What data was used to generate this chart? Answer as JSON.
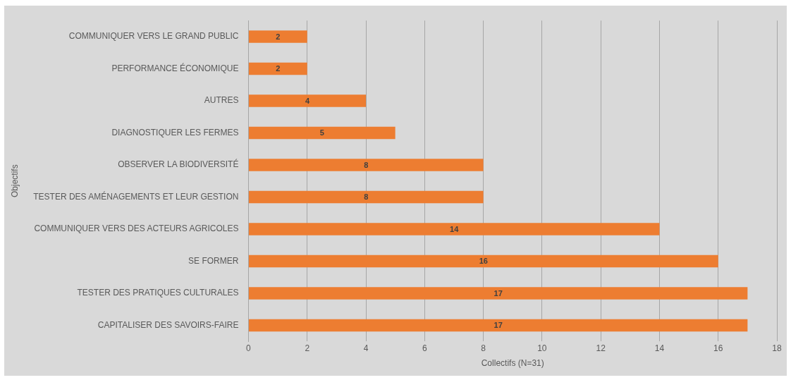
{
  "chart_data": {
    "type": "bar",
    "orientation": "horizontal",
    "xlabel": "Collectifs (N=31)",
    "ylabel": "Objectifs",
    "categories": [
      "COMMUNIQUER VERS LE GRAND PUBLIC",
      "PERFORMANCE ÉCONOMIQUE",
      "AUTRES",
      "DIAGNOSTIQUER LES FERMES",
      "OBSERVER LA BIODIVERSITÉ",
      "TESTER DES AMÉNAGEMENTS ET LEUR GESTION",
      "COMMUNIQUER VERS DES ACTEURS AGRICOLES",
      "SE FORMER",
      "TESTER DES PRATIQUES CULTURALES",
      "CAPITALISER DES SAVOIRS-FAIRE"
    ],
    "values": [
      2,
      2,
      4,
      5,
      8,
      8,
      14,
      16,
      17,
      17
    ],
    "color": "#ed7d31",
    "xlim": [
      0,
      18
    ],
    "xticks": [
      0,
      2,
      4,
      6,
      8,
      10,
      12,
      14,
      16,
      18
    ],
    "grid": "x",
    "data_labels": true,
    "legend": false
  }
}
